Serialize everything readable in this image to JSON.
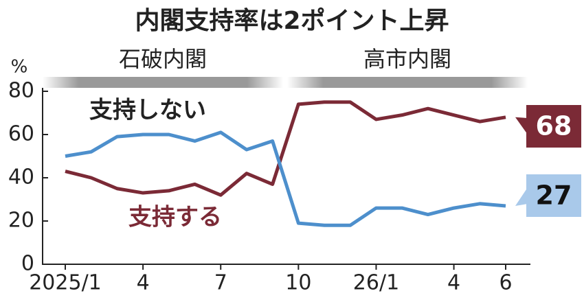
{
  "chart_data": {
    "type": "line",
    "title": "内閣支持率は2ポイント上昇",
    "y_unit": "%",
    "eras": [
      "石破内閣",
      "高市内閣"
    ],
    "categories": [
      "2025/1",
      null,
      null,
      "4",
      null,
      null,
      "7",
      null,
      null,
      "10",
      null,
      null,
      "26/1",
      null,
      null,
      "4",
      null,
      "6"
    ],
    "series": [
      {
        "name": "支持する",
        "color": "#7b2a36",
        "values": [
          43,
          40,
          35,
          33,
          34,
          37,
          32,
          42,
          37,
          74,
          75,
          75,
          67,
          69,
          72,
          69,
          66,
          68
        ]
      },
      {
        "name": "支持しない",
        "color": "#4d8fcc",
        "values": [
          50,
          52,
          59,
          60,
          60,
          57,
          61,
          53,
          57,
          19,
          18,
          18,
          26,
          26,
          23,
          26,
          28,
          27
        ]
      }
    ],
    "ylim": [
      0,
      80
    ],
    "yticks": [
      0,
      20,
      40,
      60,
      80
    ],
    "grid": false
  }
}
